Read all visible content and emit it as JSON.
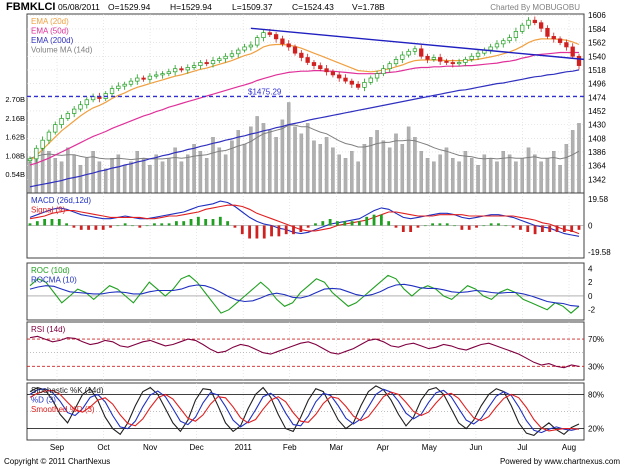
{
  "header": {
    "symbol": "FBMKLCI",
    "date": "05/08/2011",
    "open": "O=1529.94",
    "high": "H=1529.94",
    "low": "L=1509.37",
    "close": "C=1524.43",
    "volume": "V=1.78B",
    "charted_by": "Charted By MOBUGOBU"
  },
  "footer": {
    "copyright": "Copyright © 2011 ChartNexus",
    "powered_by": "Powered by www.chartnexus.com"
  },
  "colors": {
    "ema20": "#f0a040",
    "ema50": "#e0309a",
    "ema200": "#3030c0",
    "vol_ma": "#808080",
    "up": "#20a020",
    "down": "#d02020",
    "trendline": "#2020c0",
    "support": "#3030d0",
    "grid": "#d8d8d8",
    "panel_border": "#404040"
  },
  "chart_data": {
    "type": "stock",
    "x_labels": [
      "Sep",
      "Oct",
      "Nov",
      "Dec",
      "2011",
      "Feb",
      "Mar",
      "Apr",
      "May",
      "Jun",
      "Jul",
      "Aug"
    ],
    "price_panel": {
      "legend": [
        "EMA (20d)",
        "EMA (50d)",
        "EMA (200d)",
        "Volume MA (14d)"
      ],
      "y_ticks": [
        1606,
        1584,
        1562,
        1540,
        1518,
        1496,
        1474,
        1452,
        1430,
        1408,
        1386,
        1364,
        1342
      ],
      "ylim": [
        1320,
        1608
      ],
      "volume_ticks": [
        "2.70B",
        "2.16B",
        "1.62B",
        "1.08B",
        "0.54B"
      ],
      "volume_max": 2.9,
      "support_label": "$1475.29",
      "support_level": 1475.29,
      "closes": [
        1375,
        1392,
        1405,
        1418,
        1430,
        1440,
        1448,
        1455,
        1462,
        1470,
        1475,
        1472,
        1480,
        1488,
        1492,
        1495,
        1500,
        1505,
        1503,
        1508,
        1510,
        1512,
        1515,
        1520,
        1518,
        1522,
        1525,
        1530,
        1528,
        1533,
        1536,
        1540,
        1544,
        1550,
        1555,
        1558,
        1570,
        1578,
        1575,
        1568,
        1560,
        1555,
        1545,
        1538,
        1530,
        1525,
        1520,
        1515,
        1510,
        1505,
        1500,
        1495,
        1490,
        1498,
        1505,
        1512,
        1520,
        1528,
        1535,
        1542,
        1548,
        1552,
        1540,
        1535,
        1538,
        1532,
        1530,
        1528,
        1530,
        1535,
        1540,
        1545,
        1550,
        1555,
        1560,
        1565,
        1570,
        1580,
        1590,
        1598,
        1594,
        1585,
        1572,
        1568,
        1562,
        1555,
        1540,
        1525
      ],
      "ema20": [
        1372,
        1380,
        1390,
        1400,
        1410,
        1420,
        1428,
        1436,
        1444,
        1451,
        1457,
        1461,
        1466,
        1472,
        1477,
        1481,
        1486,
        1490,
        1493,
        1496,
        1499,
        1502,
        1505,
        1508,
        1510,
        1513,
        1516,
        1519,
        1521,
        1524,
        1527,
        1530,
        1533,
        1537,
        1541,
        1544,
        1549,
        1555,
        1558,
        1559,
        1559,
        1558,
        1556,
        1553,
        1549,
        1545,
        1541,
        1537,
        1533,
        1529,
        1525,
        1521,
        1517,
        1516,
        1515,
        1516,
        1518,
        1520,
        1523,
        1526,
        1530,
        1533,
        1534,
        1534,
        1534,
        1534,
        1533,
        1533,
        1533,
        1533,
        1534,
        1535,
        1537,
        1539,
        1541,
        1544,
        1547,
        1551,
        1556,
        1562,
        1566,
        1568,
        1568,
        1568,
        1567,
        1566,
        1563,
        1559
      ],
      "ema50": [
        1365,
        1368,
        1372,
        1376,
        1381,
        1386,
        1391,
        1396,
        1401,
        1406,
        1411,
        1415,
        1419,
        1424,
        1428,
        1432,
        1436,
        1440,
        1444,
        1447,
        1451,
        1454,
        1458,
        1461,
        1464,
        1467,
        1470,
        1473,
        1476,
        1479,
        1482,
        1485,
        1488,
        1491,
        1494,
        1497,
        1501,
        1504,
        1507,
        1510,
        1512,
        1514,
        1515,
        1516,
        1516,
        1517,
        1517,
        1516,
        1516,
        1515,
        1514,
        1513,
        1512,
        1512,
        1512,
        1512,
        1513,
        1514,
        1515,
        1517,
        1519,
        1521,
        1522,
        1522,
        1523,
        1523,
        1524,
        1524,
        1524,
        1525,
        1525,
        1526,
        1527,
        1528,
        1529,
        1531,
        1532,
        1534,
        1537,
        1539,
        1542,
        1543,
        1544,
        1545,
        1546,
        1546,
        1546,
        1546
      ],
      "ema200": [
        1330,
        1332,
        1334,
        1336,
        1338,
        1340,
        1343,
        1345,
        1347,
        1350,
        1352,
        1355,
        1357,
        1360,
        1362,
        1365,
        1367,
        1370,
        1372,
        1375,
        1377,
        1380,
        1382,
        1385,
        1387,
        1390,
        1392,
        1395,
        1397,
        1400,
        1402,
        1405,
        1407,
        1410,
        1412,
        1415,
        1417,
        1420,
        1422,
        1425,
        1427,
        1430,
        1432,
        1434,
        1437,
        1439,
        1441,
        1443,
        1445,
        1447,
        1449,
        1451,
        1453,
        1455,
        1457,
        1459,
        1461,
        1463,
        1465,
        1467,
        1469,
        1471,
        1473,
        1475,
        1477,
        1479,
        1481,
        1483,
        1485,
        1486,
        1488,
        1490,
        1492,
        1494,
        1496,
        1497,
        1499,
        1501,
        1503,
        1505,
        1507,
        1508,
        1510,
        1511,
        1513,
        1515,
        1516,
        1518
      ],
      "volume": [
        0.9,
        1.1,
        1.4,
        1.2,
        1.0,
        0.9,
        1.3,
        1.1,
        0.8,
        1.0,
        1.2,
        0.9,
        0.7,
        1.0,
        1.1,
        0.8,
        0.9,
        1.2,
        1.0,
        0.8,
        1.1,
        0.9,
        1.0,
        1.3,
        0.9,
        1.1,
        1.4,
        1.2,
        1.0,
        1.6,
        1.3,
        1.1,
        1.5,
        1.8,
        1.4,
        1.9,
        2.2,
        2.0,
        1.8,
        1.6,
        2.1,
        2.6,
        1.9,
        1.7,
        2.0,
        1.5,
        1.4,
        1.6,
        1.3,
        1.1,
        1.0,
        1.2,
        0.9,
        1.4,
        1.6,
        1.8,
        1.5,
        1.3,
        1.7,
        1.4,
        1.9,
        1.6,
        1.2,
        1.0,
        0.9,
        1.1,
        1.3,
        1.0,
        0.9,
        1.2,
        1.0,
        0.8,
        1.1,
        1.0,
        0.9,
        1.2,
        1.1,
        0.9,
        1.0,
        1.3,
        1.1,
        0.9,
        1.0,
        1.2,
        0.8,
        1.4,
        1.8,
        2.0
      ],
      "volume_ma": [
        1.0,
        1.05,
        1.1,
        1.12,
        1.1,
        1.08,
        1.1,
        1.1,
        1.05,
        1.02,
        1.04,
        1.0,
        0.98,
        0.98,
        1.0,
        0.98,
        0.96,
        0.98,
        1.0,
        0.98,
        0.98,
        0.98,
        1.0,
        1.02,
        1.0,
        1.02,
        1.06,
        1.08,
        1.1,
        1.15,
        1.2,
        1.22,
        1.28,
        1.35,
        1.4,
        1.48,
        1.6,
        1.7,
        1.75,
        1.8,
        1.85,
        1.95,
        1.95,
        1.9,
        1.9,
        1.82,
        1.75,
        1.7,
        1.6,
        1.5,
        1.42,
        1.38,
        1.32,
        1.32,
        1.36,
        1.42,
        1.45,
        1.46,
        1.5,
        1.5,
        1.52,
        1.5,
        1.44,
        1.38,
        1.3,
        1.24,
        1.2,
        1.14,
        1.08,
        1.06,
        1.04,
        1.0,
        0.98,
        1.0,
        0.98,
        1.0,
        1.02,
        1.0,
        1.0,
        1.02,
        1.04,
        1.0,
        1.0,
        1.02,
        0.98,
        1.02,
        1.1,
        1.2
      ]
    },
    "macd_panel": {
      "legend": [
        "MACD (26d,12d)",
        "Signal (9)"
      ],
      "y_ticks": [
        "19.58",
        "0",
        "-19.58"
      ],
      "ylim": [
        -24,
        24
      ],
      "macd": [
        6,
        8,
        10,
        12,
        13,
        12,
        10,
        8,
        7,
        6,
        5,
        5,
        6,
        7,
        6,
        5,
        5,
        6,
        7,
        8,
        9,
        10,
        12,
        14,
        15,
        16,
        18,
        17,
        14,
        10,
        6,
        3,
        1,
        0,
        -2,
        -3,
        -5,
        -6,
        -5,
        -3,
        -1,
        1,
        2,
        3,
        4,
        5,
        8,
        11,
        13,
        12,
        9,
        6,
        5,
        6,
        7,
        8,
        9,
        9,
        8,
        6,
        5,
        6,
        7,
        8,
        8,
        7,
        6,
        4,
        2,
        0,
        -1,
        -2,
        -4,
        -6,
        -7,
        -8
      ],
      "signal": [
        5,
        6,
        7,
        9,
        10,
        11,
        11,
        10,
        9,
        8,
        7,
        6,
        6,
        6,
        6,
        6,
        5,
        5,
        6,
        7,
        7,
        8,
        9,
        10,
        12,
        13,
        14,
        15,
        15,
        14,
        12,
        9,
        7,
        5,
        3,
        1,
        -1,
        -3,
        -4,
        -4,
        -3,
        -2,
        0,
        1,
        2,
        3,
        4,
        6,
        8,
        10,
        10,
        9,
        8,
        7,
        7,
        7,
        8,
        8,
        8,
        8,
        7,
        7,
        7,
        7,
        7,
        7,
        7,
        6,
        5,
        4,
        2,
        1,
        -1,
        -3,
        -4,
        -6
      ]
    },
    "roc_panel": {
      "legend": [
        "ROC (10d)",
        "ROCMA (10)"
      ],
      "y_ticks": [
        "4",
        "2",
        "0",
        "-2"
      ],
      "ylim": [
        -3.5,
        4.8
      ],
      "roc": [
        1.5,
        2.5,
        2.0,
        0.5,
        -1.0,
        0.0,
        1.0,
        0.5,
        -0.5,
        0.5,
        1.5,
        1.0,
        0.0,
        -1.0,
        0.5,
        2.0,
        1.0,
        0.0,
        1.0,
        2.5,
        3.0,
        2.0,
        0.5,
        -1.0,
        -2.5,
        -2.0,
        -1.0,
        0.0,
        1.0,
        2.0,
        1.0,
        -0.5,
        -1.5,
        -1.0,
        0.5,
        1.5,
        2.5,
        2.0,
        0.5,
        -0.5,
        -1.5,
        -1.0,
        0.0,
        1.0,
        2.0,
        3.0,
        2.5,
        1.0,
        0.0,
        1.0,
        1.5,
        1.0,
        0.0,
        -0.5,
        0.5,
        1.5,
        1.0,
        0.0,
        -0.5,
        0.5,
        1.0,
        0.5,
        -0.5,
        -1.0,
        -1.5,
        -2.0,
        -1.0,
        -1.5,
        -2.5,
        -1.5
      ],
      "rocma": [
        1.0,
        1.3,
        1.5,
        1.4,
        1.0,
        0.6,
        0.5,
        0.4,
        0.3,
        0.3,
        0.5,
        0.6,
        0.5,
        0.3,
        0.3,
        0.6,
        0.8,
        0.8,
        0.8,
        1.0,
        1.4,
        1.6,
        1.5,
        1.1,
        0.5,
        -0.1,
        -0.6,
        -0.8,
        -0.7,
        -0.3,
        0.2,
        0.4,
        0.2,
        -0.2,
        -0.3,
        0.0,
        0.5,
        1.0,
        1.1,
        1.0,
        0.6,
        0.2,
        0.0,
        0.2,
        0.6,
        1.2,
        1.6,
        1.7,
        1.5,
        1.2,
        1.1,
        1.1,
        0.9,
        0.6,
        0.5,
        0.6,
        0.8,
        0.7,
        0.5,
        0.4,
        0.5,
        0.5,
        0.3,
        0.0,
        -0.4,
        -0.8,
        -1.0,
        -1.1,
        -1.4,
        -1.5
      ]
    },
    "rsi_panel": {
      "legend": [
        "RSI (14d)"
      ],
      "y_ticks": [
        "70%",
        "30%"
      ],
      "ylim": [
        10,
        95
      ],
      "rsi": [
        72,
        74,
        70,
        66,
        68,
        72,
        71,
        66,
        62,
        64,
        68,
        66,
        60,
        58,
        62,
        66,
        68,
        64,
        60,
        62,
        66,
        70,
        68,
        62,
        55,
        50,
        52,
        58,
        62,
        60,
        55,
        50,
        48,
        52,
        56,
        60,
        64,
        66,
        62,
        56,
        50,
        48,
        52,
        56,
        62,
        68,
        70,
        66,
        60,
        58,
        62,
        64,
        60,
        56,
        58,
        62,
        60,
        56,
        54,
        58,
        62,
        64,
        60,
        56,
        52,
        48,
        42,
        36,
        32,
        34,
        30,
        28,
        32,
        30
      ]
    },
    "stoch_panel": {
      "legend": [
        "Stochastic %K (14d)",
        "%D (3)",
        "Smoothed %D (3)"
      ],
      "y_ticks": [
        "80%",
        "20%"
      ],
      "ylim": [
        0,
        100
      ],
      "k": [
        85,
        92,
        88,
        70,
        45,
        30,
        55,
        80,
        90,
        70,
        40,
        20,
        10,
        30,
        60,
        85,
        92,
        80,
        55,
        30,
        15,
        35,
        70,
        90,
        88,
        60,
        30,
        15,
        25,
        55,
        80,
        92,
        75,
        45,
        20,
        15,
        40,
        70,
        90,
        85,
        60,
        35,
        20,
        30,
        60,
        85,
        95,
        88,
        70,
        45,
        25,
        40,
        70,
        88,
        92,
        80,
        55,
        30,
        20,
        35,
        60,
        80,
        90,
        85,
        60,
        30,
        12,
        8,
        20,
        30,
        18,
        10,
        22,
        28
      ],
      "d": [
        80,
        88,
        90,
        83,
        68,
        48,
        43,
        55,
        75,
        80,
        67,
        43,
        23,
        20,
        33,
        58,
        79,
        86,
        76,
        55,
        33,
        27,
        40,
        65,
        83,
        79,
        59,
        35,
        23,
        32,
        53,
        76,
        82,
        71,
        47,
        27,
        25,
        42,
        67,
        82,
        78,
        60,
        38,
        28,
        37,
        58,
        80,
        89,
        84,
        68,
        47,
        37,
        45,
        66,
        83,
        87,
        76,
        55,
        35,
        28,
        38,
        58,
        77,
        85,
        78,
        58,
        34,
        17,
        13,
        19,
        23,
        19,
        17,
        20
      ],
      "sd": [
        75,
        82,
        86,
        87,
        80,
        66,
        53,
        49,
        58,
        70,
        74,
        63,
        44,
        29,
        25,
        37,
        57,
        74,
        80,
        72,
        55,
        38,
        33,
        44,
        63,
        76,
        74,
        58,
        39,
        30,
        36,
        54,
        70,
        76,
        67,
        48,
        33,
        31,
        45,
        64,
        76,
        73,
        59,
        42,
        34,
        41,
        58,
        76,
        84,
        80,
        66,
        50,
        43,
        49,
        65,
        79,
        82,
        73,
        55,
        39,
        34,
        41,
        58,
        73,
        80,
        74,
        57,
        36,
        21,
        16,
        18,
        20,
        20,
        19
      ]
    }
  }
}
